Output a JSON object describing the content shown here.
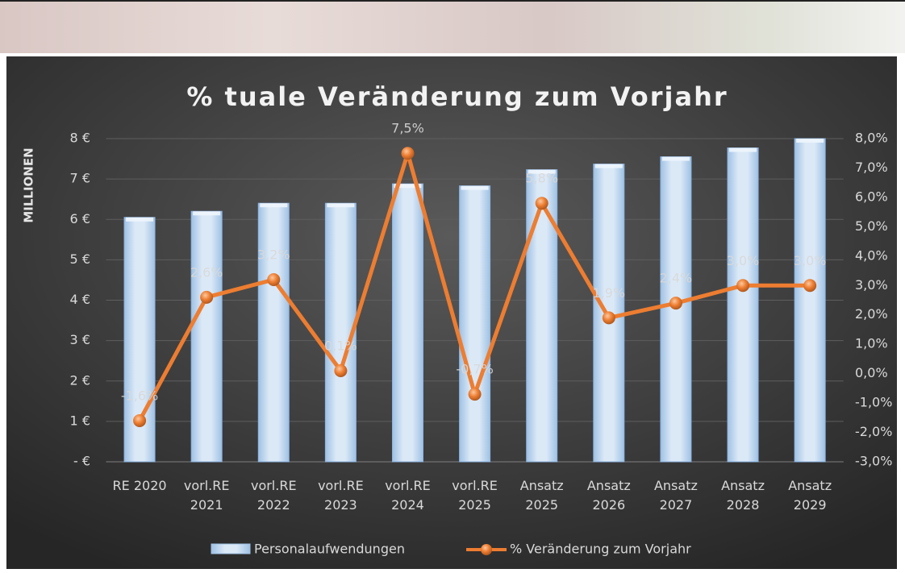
{
  "chart_data": {
    "type": "bar-line",
    "title": "% tuale Veränderung zum Vorjahr",
    "y_label": "MILLIONEN",
    "categories": [
      "RE 2020",
      "vorl.RE 2021",
      "vorl.RE 2022",
      "vorl.RE 2023",
      "vorl.RE 2024",
      "vorl.RE 2025",
      "Ansatz 2025",
      "Ansatz 2026",
      "Ansatz 2027",
      "Ansatz 2028",
      "Ansatz 2029"
    ],
    "series": [
      {
        "name": "Personalaufwendungen",
        "type": "bar",
        "color": "#bdd7ee",
        "values": [
          6.05,
          6.2,
          6.4,
          6.4,
          6.88,
          6.83,
          7.23,
          7.37,
          7.55,
          7.77,
          8.0
        ]
      },
      {
        "name": "% Veränderung zum Vorjahr",
        "type": "line",
        "axis": "y2",
        "color": "#ed7d31",
        "values": [
          -1.6,
          2.6,
          3.2,
          0.1,
          7.5,
          -0.7,
          5.8,
          1.9,
          2.4,
          3.0,
          3.0
        ],
        "value_labels": [
          "-1,6%",
          "2,6%",
          "3,2%",
          "0,1%",
          "7,5%",
          "-0,7%",
          "5,8%",
          "1,9%",
          "2,4%",
          "3,0%",
          "3,0%"
        ]
      }
    ],
    "ylim": [
      0,
      8
    ],
    "yticks": [
      {
        "value": 0,
        "label": "- €"
      },
      {
        "value": 1,
        "label": "1 €"
      },
      {
        "value": 2,
        "label": "2 €"
      },
      {
        "value": 3,
        "label": "3 €"
      },
      {
        "value": 4,
        "label": "4 €"
      },
      {
        "value": 5,
        "label": "5 €"
      },
      {
        "value": 6,
        "label": "6 €"
      },
      {
        "value": 7,
        "label": "7 €"
      },
      {
        "value": 8,
        "label": "8 €"
      }
    ],
    "y2lim": [
      -3,
      8
    ],
    "y2ticks": [
      {
        "value": -3,
        "label": "-3,0%"
      },
      {
        "value": -2,
        "label": "-2,0%"
      },
      {
        "value": -1,
        "label": "-1,0%"
      },
      {
        "value": 0,
        "label": "0,0%"
      },
      {
        "value": 1,
        "label": "1,0%"
      },
      {
        "value": 2,
        "label": "2,0%"
      },
      {
        "value": 3,
        "label": "3,0%"
      },
      {
        "value": 4,
        "label": "4,0%"
      },
      {
        "value": 5,
        "label": "5,0%"
      },
      {
        "value": 6,
        "label": "6,0%"
      },
      {
        "value": 7,
        "label": "7,0%"
      },
      {
        "value": 8,
        "label": "8,0%"
      }
    ],
    "grid": true,
    "legend": "bottom"
  }
}
